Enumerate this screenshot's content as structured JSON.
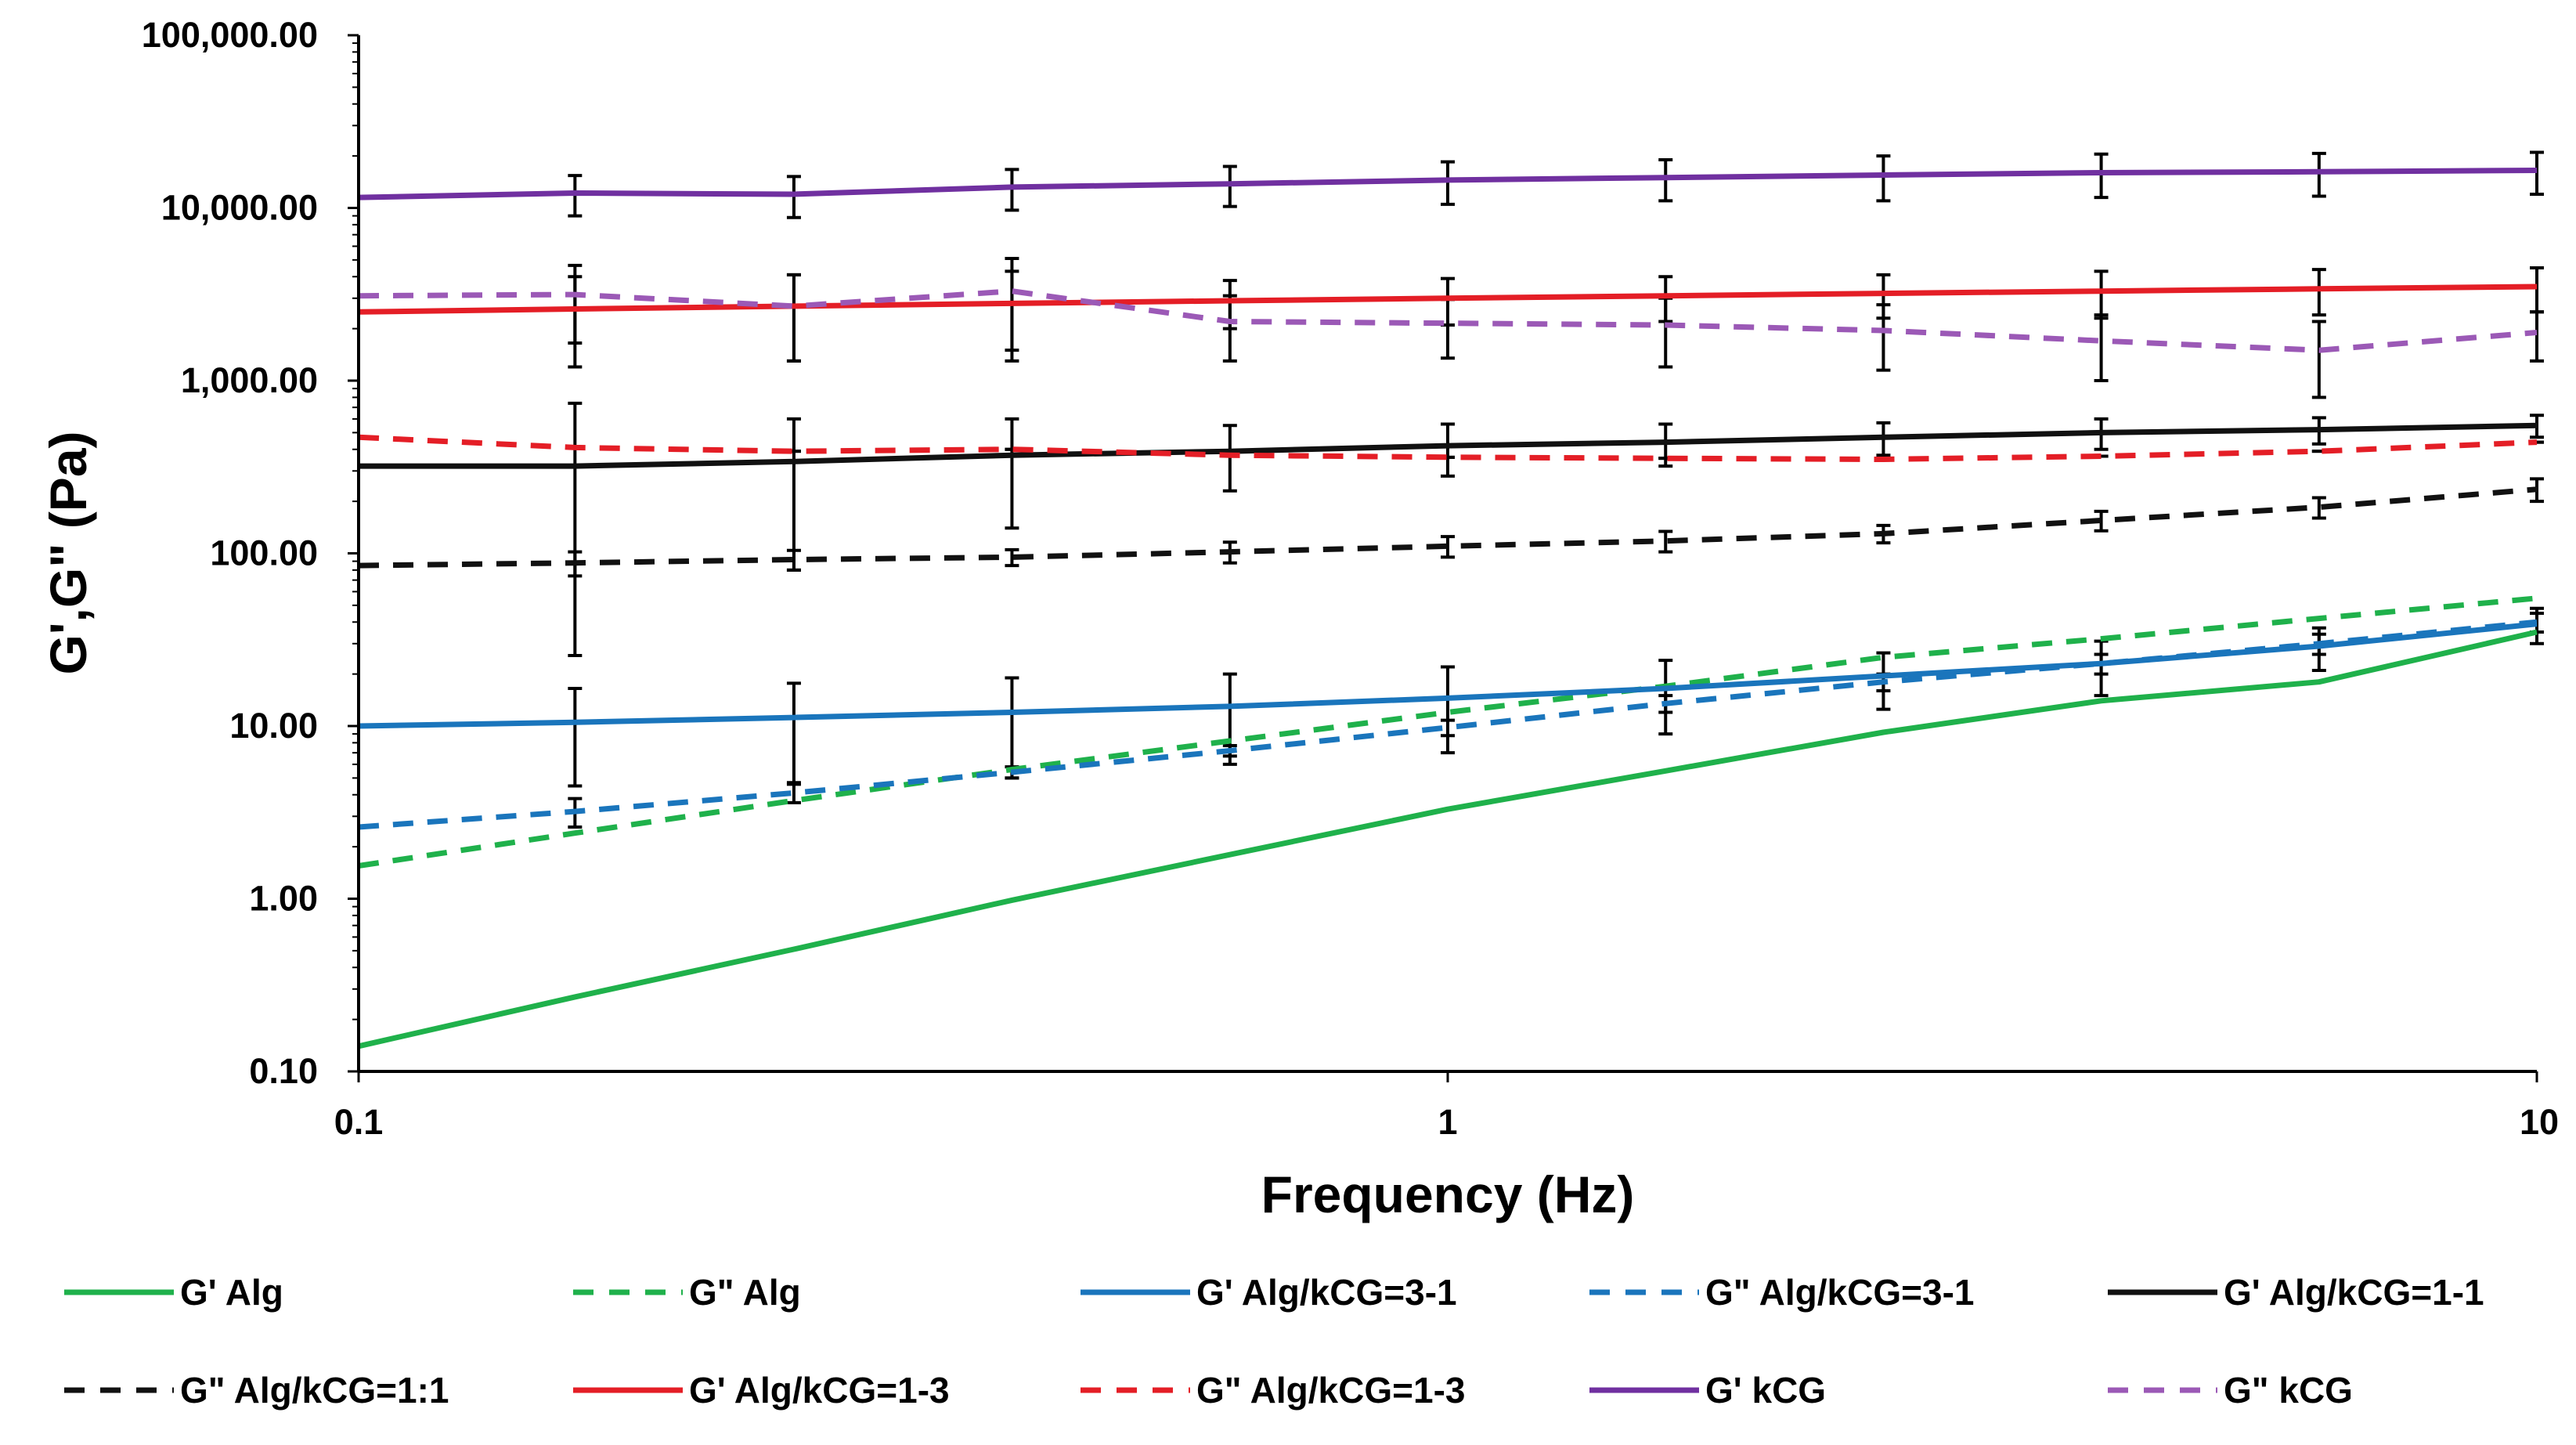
{
  "chart_data": {
    "type": "line",
    "title": "",
    "xlabel": "Frequency (Hz)",
    "ylabel": "G',G\" (Pa)",
    "xscale": "log",
    "yscale": "log",
    "xlim": [
      0.1,
      10
    ],
    "ylim": [
      0.1,
      100000
    ],
    "x_ticks": [
      {
        "value": 0.1,
        "label": "0.1"
      },
      {
        "value": 1,
        "label": "1"
      },
      {
        "value": 10,
        "label": "10"
      }
    ],
    "y_ticks": [
      {
        "value": 0.1,
        "label": "0.10"
      },
      {
        "value": 1,
        "label": "1.00"
      },
      {
        "value": 10,
        "label": "10.00"
      },
      {
        "value": 100,
        "label": "100.00"
      },
      {
        "value": 1000,
        "label": "1,000.00"
      },
      {
        "value": 10000,
        "label": "10,000.00"
      },
      {
        "value": 100000,
        "label": "100,000.00"
      }
    ],
    "x": [
      0.1,
      0.158,
      0.251,
      0.398,
      0.631,
      1.0,
      1.585,
      2.512,
      3.981,
      6.31,
      10.0
    ],
    "legend_position": "bottom",
    "series": [
      {
        "name": "G' Alg",
        "color": "#1fb14b",
        "dash": "solid",
        "values": [
          0.14,
          0.27,
          0.51,
          0.98,
          1.8,
          3.3,
          5.5,
          9.2,
          14,
          18,
          35
        ],
        "errors": null
      },
      {
        "name": "G\" Alg",
        "color": "#1fb14b",
        "dash": "dashed",
        "values": [
          1.55,
          2.4,
          3.7,
          5.6,
          8.2,
          12,
          17,
          25,
          32,
          42,
          55
        ],
        "errors": null
      },
      {
        "name": "G' Alg/kCG=3-1",
        "color": "#1a75bc",
        "dash": "solid",
        "values": [
          10,
          10.5,
          11.2,
          12,
          13,
          14.5,
          16.5,
          19.5,
          23,
          29,
          39
        ],
        "errors": [
          null,
          6,
          6.5,
          7,
          7,
          7.5,
          7.5,
          7,
          8,
          8,
          9
        ]
      },
      {
        "name": "G\" Alg/kCG=3-1",
        "color": "#1a75bc",
        "dash": "dashed",
        "values": [
          2.6,
          3.2,
          4.1,
          5.4,
          7.2,
          9.8,
          13.5,
          18,
          23,
          30,
          40
        ],
        "errors": [
          null,
          0.6,
          0.5,
          0.4,
          0.5,
          1,
          1.5,
          2,
          3,
          4,
          5
        ]
      },
      {
        "name": "G' Alg/kCG=1-1",
        "color": "#111111",
        "dash": "solid",
        "values": [
          320,
          320,
          340,
          370,
          390,
          420,
          440,
          470,
          500,
          520,
          550
        ],
        "errors": [
          null,
          420,
          260,
          230,
          160,
          140,
          120,
          100,
          100,
          90,
          80
        ]
      },
      {
        "name": "G\" Alg/kCG=1:1",
        "color": "#111111",
        "dash": "dashed",
        "values": [
          85,
          88,
          92,
          95,
          102,
          110,
          118,
          130,
          155,
          185,
          235
        ],
        "errors": [
          null,
          14,
          12,
          10,
          14,
          15,
          16,
          15,
          20,
          25,
          35
        ]
      },
      {
        "name": "G' Alg/kCG=1-3",
        "color": "#e41e26",
        "dash": "solid",
        "values": [
          2500,
          2600,
          2700,
          2800,
          2900,
          3000,
          3100,
          3200,
          3300,
          3400,
          3500
        ],
        "errors": [
          null,
          1400,
          1400,
          1500,
          900,
          900,
          900,
          900,
          1000,
          1000,
          1000
        ]
      },
      {
        "name": "G\" Alg/kCG=1-3",
        "color": "#e41e26",
        "dash": "dashed",
        "values": [
          470,
          410,
          390,
          400,
          370,
          360,
          355,
          350,
          365,
          390,
          440
        ],
        "errors": [
          null,
          0,
          0,
          0,
          0,
          0,
          0,
          0,
          0,
          0,
          0
        ]
      },
      {
        "name": "G' kCG",
        "color": "#7030a0",
        "dash": "solid",
        "values": [
          11500,
          12200,
          12000,
          13200,
          13800,
          14500,
          15000,
          15500,
          16000,
          16200,
          16500
        ],
        "errors": [
          null,
          3200,
          3200,
          3500,
          3600,
          4000,
          4000,
          4500,
          4500,
          4500,
          4500
        ]
      },
      {
        "name": "G\" kCG",
        "color": "#9b59b6",
        "dash": "dashed",
        "values": [
          3100,
          3150,
          2700,
          3300,
          2200,
          2150,
          2100,
          1950,
          1700,
          1500,
          1900
        ],
        "errors": [
          null,
          1500,
          1400,
          1800,
          900,
          800,
          900,
          800,
          700,
          700,
          600
        ]
      }
    ]
  }
}
